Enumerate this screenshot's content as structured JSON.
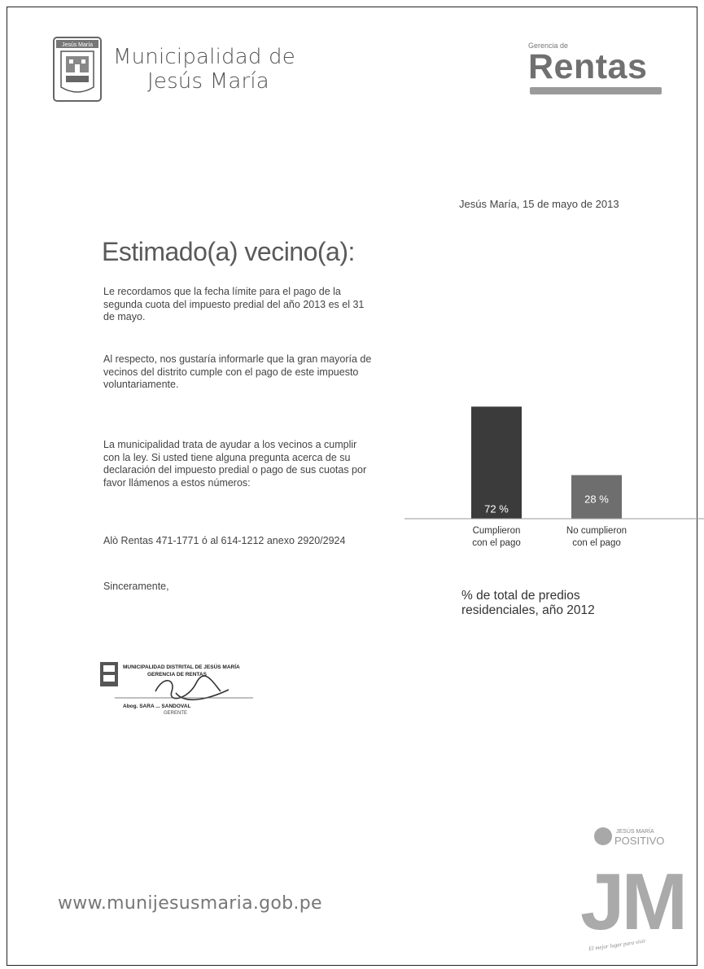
{
  "header": {
    "crest_text": "Jesús María",
    "muni_line1": "Municipalidad de",
    "muni_line2": "Jesús María",
    "rentas_small": "Gerencia de",
    "rentas_big": "Rentas"
  },
  "letter": {
    "date": "Jesús María, 15 de mayo de 2013",
    "greeting": "Estimado(a) vecino(a):",
    "p1": "Le recordamos que la fecha límite para el pago de la segunda cuota del impuesto predial del año 2013 es el 31 de mayo.",
    "p2": "Al respecto, nos gustaría informarle que la gran mayoría de vecinos del distrito cumple con el pago de este impuesto voluntariamente.",
    "p3": "La municipalidad trata de ayudar a los vecinos a cumplir con la ley. Si usted tiene alguna pregunta acerca de su declaración del impuesto predial o pago de sus cuotas por favor llámenos a estos números:",
    "p4": "Alò Rentas 471-1771 ó al 614-1212 anexo 2920/2924",
    "closing": "Sinceramente,"
  },
  "stamp": {
    "line1": "MUNICIPALIDAD DISTRITAL DE JESÚS MARÍA",
    "line2": "GERENCIA DE RENTAS",
    "name": "Abog. SARA ... SANDOVAL",
    "role": "GERENTE"
  },
  "chart_data": {
    "type": "bar",
    "categories": [
      "Cumplieron con el pago",
      "No cumplieron con el pago"
    ],
    "category_lines": [
      [
        "Cumplieron",
        "con el pago"
      ],
      [
        "No cumplieron",
        "con el pago"
      ]
    ],
    "values": [
      72,
      28
    ],
    "value_labels": [
      "72 %",
      "28 %"
    ],
    "bar_colors": [
      "#3b3b3b",
      "#6e6e6e"
    ],
    "ylim": [
      0,
      100
    ],
    "caption": "% de total de predios residenciales, año 2012"
  },
  "footer": {
    "website": "www.munijesusmaria.gob.pe",
    "jm_top": "JESÚS MARÍA",
    "jm_positivo": "POSITIVO",
    "jm_letters": "JM",
    "jm_slogan": "El mejor lugar para vivir"
  }
}
